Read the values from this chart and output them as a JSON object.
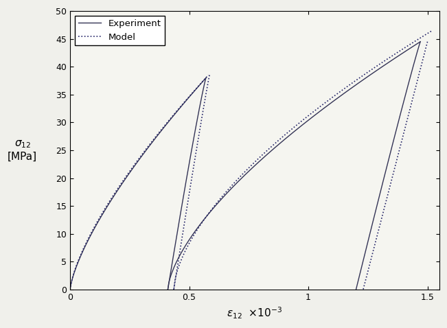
{
  "xlim": [
    0,
    1.55
  ],
  "ylim": [
    0,
    50
  ],
  "xticks": [
    0,
    0.5,
    1.0,
    1.5
  ],
  "yticks": [
    0,
    5,
    10,
    15,
    20,
    25,
    30,
    35,
    40,
    45,
    50
  ],
  "exp_color": "#333355",
  "model_color": "#222266",
  "background_color": "#f5f5f0",
  "legend_loc": "upper left",
  "figsize": [
    6.51,
    4.78
  ],
  "dpi": 100
}
